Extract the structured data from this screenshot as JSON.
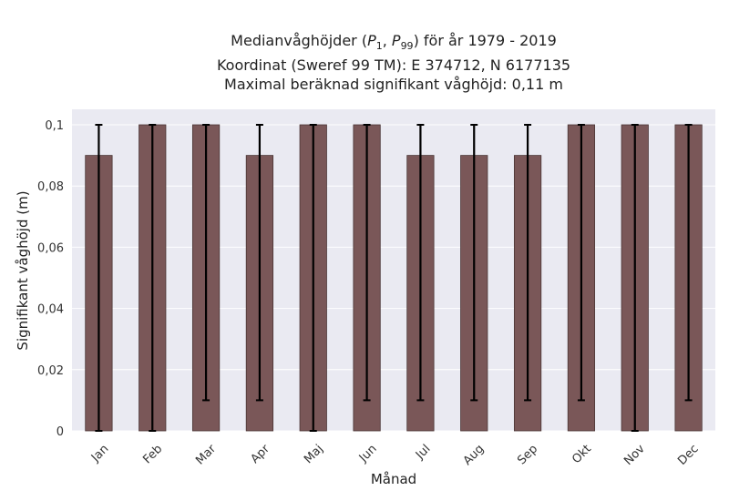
{
  "chart_data": {
    "type": "bar",
    "title_lines": [
      "Medianvåghöjder (P1, P99) för år 1979 - 2019",
      "Koordinat (Sweref 99 TM): E 374712, N 6177135",
      "Maximal beräknad signifikant våghöjd: 0,11 m"
    ],
    "xlabel": "Månad",
    "ylabel": "Signifikant våghöjd (m)",
    "categories": [
      "Jan",
      "Feb",
      "Mar",
      "Apr",
      "Maj",
      "Jun",
      "Jul",
      "Aug",
      "Sep",
      "Okt",
      "Nov",
      "Dec"
    ],
    "values": [
      0.09,
      0.1,
      0.1,
      0.09,
      0.1,
      0.1,
      0.09,
      0.09,
      0.09,
      0.1,
      0.1,
      0.1
    ],
    "error_low": [
      0.0,
      0.0,
      0.01,
      0.01,
      0.0,
      0.01,
      0.01,
      0.01,
      0.01,
      0.01,
      0.0,
      0.01
    ],
    "error_high": [
      0.1,
      0.1,
      0.1,
      0.1,
      0.1,
      0.1,
      0.1,
      0.1,
      0.1,
      0.1,
      0.1,
      0.1
    ],
    "ylim": [
      0,
      0.1
    ],
    "yticks": [
      0,
      0.02,
      0.04,
      0.06,
      0.08,
      0.1
    ],
    "ytick_labels": [
      "0",
      "0,02",
      "0,04",
      "0,06",
      "0,08",
      "0,1"
    ],
    "grid": true,
    "colors": {
      "bar": "#7a5758",
      "bar_edge": "#4a3535",
      "errorbar": "#000000",
      "plot_bg": "#eaeaf2",
      "grid": "#ffffff"
    }
  }
}
